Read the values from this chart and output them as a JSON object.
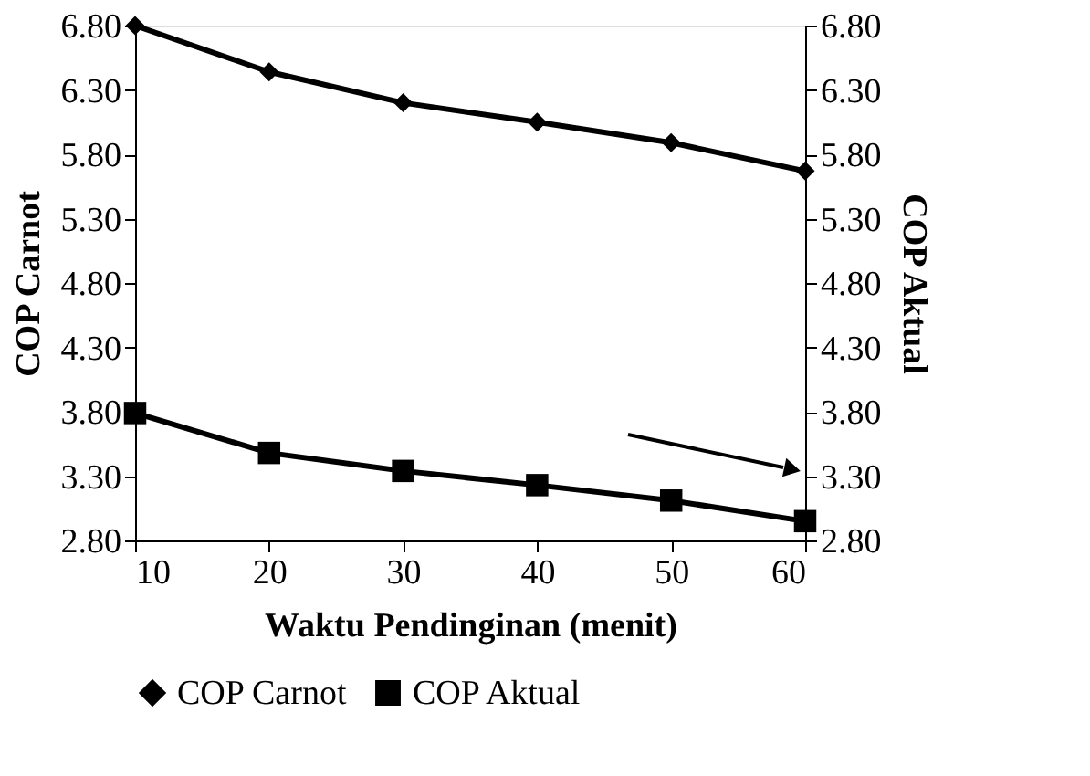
{
  "chart_data": {
    "type": "line",
    "xlabel": "Waktu Pendinginan (menit)",
    "ylabel": "COP Carnot",
    "y2label": "COP Aktual",
    "x": [
      10,
      20,
      30,
      40,
      50,
      60
    ],
    "series": [
      {
        "name": "COP Carnot",
        "color": "#000000",
        "marker": "diamond",
        "values": [
          6.8,
          6.44,
          6.2,
          6.05,
          5.89,
          5.67
        ]
      },
      {
        "name": "COP Aktual",
        "color": "#000000",
        "marker": "square",
        "axis": "y2",
        "values": [
          3.79,
          3.48,
          3.34,
          3.23,
          3.11,
          2.95
        ]
      }
    ],
    "xlim": [
      10,
      60
    ],
    "xticks": [
      10,
      20,
      30,
      40,
      50,
      60
    ],
    "ylim": [
      2.8,
      6.8
    ],
    "yticks": [
      {
        "value": 2.8,
        "label": "2.80"
      },
      {
        "value": 3.3,
        "label": "3.30"
      },
      {
        "value": 3.8,
        "label": "3.80"
      },
      {
        "value": 4.3,
        "label": "4.30"
      },
      {
        "value": 4.8,
        "label": "4.80"
      },
      {
        "value": 5.3,
        "label": "5.30"
      },
      {
        "value": 5.8,
        "label": "5.80"
      },
      {
        "value": 6.3,
        "label": "6.30"
      },
      {
        "value": 6.8,
        "label": "6.80"
      }
    ],
    "y2lim": [
      2.8,
      6.8
    ],
    "y2ticks": [
      {
        "value": 2.8,
        "label": "2.80"
      },
      {
        "value": 3.3,
        "label": "3.30"
      },
      {
        "value": 3.8,
        "label": "3.80"
      },
      {
        "value": 4.3,
        "label": "4.30"
      },
      {
        "value": 4.8,
        "label": "4.80"
      },
      {
        "value": 5.3,
        "label": "5.30"
      },
      {
        "value": 5.8,
        "label": "5.80"
      },
      {
        "value": 6.3,
        "label": "6.30"
      },
      {
        "value": 6.8,
        "label": "6.80"
      }
    ],
    "grid": false,
    "legend": "bottom",
    "line_style": "solid"
  }
}
